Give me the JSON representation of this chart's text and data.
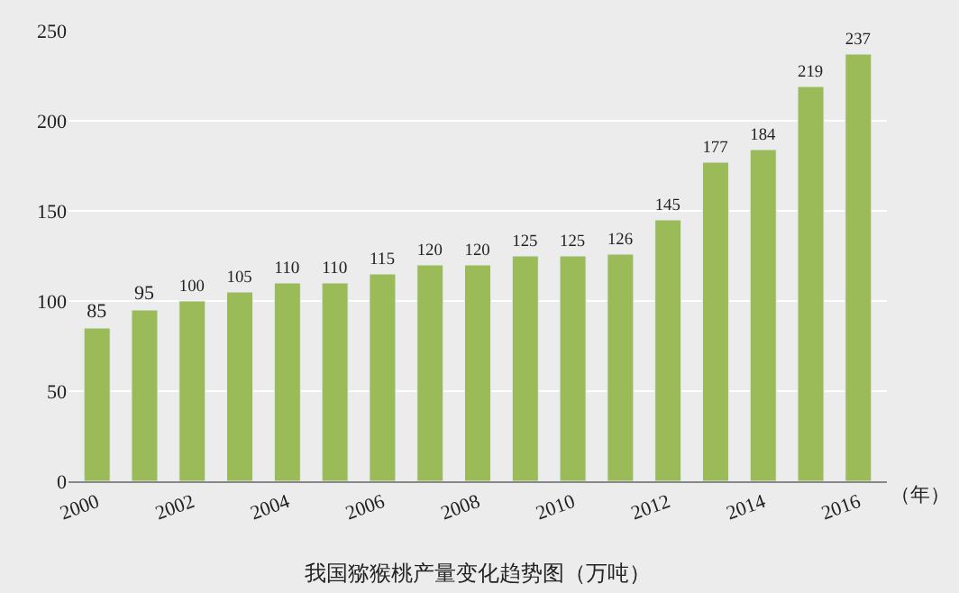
{
  "chart_data": {
    "type": "bar",
    "title": "我国猕猴桃产量变化趋势图（万吨）",
    "xlabel": "（年）",
    "categories": [
      "2000",
      null,
      "2002",
      null,
      "2004",
      null,
      "2006",
      null,
      "2008",
      null,
      "2010",
      null,
      "2012",
      null,
      "2014",
      null,
      "2016"
    ],
    "values": [
      85,
      95,
      100,
      105,
      110,
      110,
      115,
      120,
      120,
      125,
      125,
      126,
      145,
      177,
      184,
      219,
      237
    ],
    "color": "#9bbb59",
    "ylim": [
      0,
      250
    ],
    "yticks": [
      0,
      50,
      100,
      150,
      200,
      250
    ],
    "grid": "y",
    "data_labels": true
  }
}
